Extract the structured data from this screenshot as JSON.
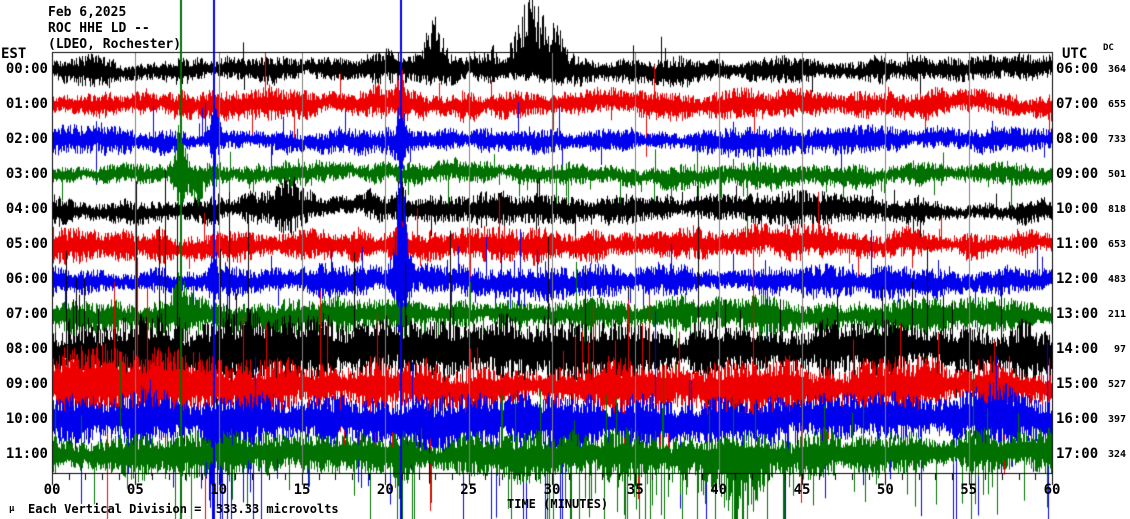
{
  "header": {
    "date": "Feb 6,2025",
    "station_line": "ROC HHE LD --",
    "network_line": "(LDEO, Rochester)"
  },
  "left_axis": {
    "tz": "EST"
  },
  "right_axis": {
    "tz": "UTC",
    "dc_label": "DC"
  },
  "x_axis": {
    "title": "TIME (MINUTES)"
  },
  "footer": {
    "mu_symbol": "μ",
    "scale_note": "Each Vertical Division =  333.33 microvolts"
  },
  "chart_data": {
    "type": "seismogram-helicorder",
    "title": "ROC HHE LD -- (LDEO, Rochester) Feb 6,2025",
    "station": "ROC HHE LD",
    "network": "LDEO, Rochester",
    "date": "Feb 6,2025",
    "xlabel": "TIME (MINUTES)",
    "x_range_minutes": [
      0,
      60
    ],
    "x_major_tick_min": 5,
    "x_minor_tick_min": 1,
    "x_tick_labels": [
      "00",
      "05",
      "10",
      "15",
      "20",
      "25",
      "30",
      "35",
      "40",
      "45",
      "50",
      "55",
      "60"
    ],
    "grid": true,
    "scale_note": "Each Vertical Division = 333.33 microvolts",
    "palette": {
      "black": "#000000",
      "red": "#ee0000",
      "blue": "#0000ee",
      "green": "#007000",
      "grid": "#808080"
    },
    "rows": [
      {
        "est": "00:00",
        "utc": "06:00",
        "dc": 364,
        "color": "black",
        "amp": 11,
        "spike": 0.015,
        "spike_scale": 3,
        "events": [
          {
            "m": 22.9,
            "w": 0.55,
            "a": 40,
            "dir": "up"
          },
          {
            "m": 28.8,
            "w": 1.1,
            "a": 62,
            "dir": "up"
          },
          {
            "m": 30.2,
            "w": 0.5,
            "a": 25,
            "dir": "up"
          },
          {
            "m": 26.3,
            "w": 0.4,
            "a": 16,
            "dir": "up"
          }
        ]
      },
      {
        "est": "01:00",
        "utc": "07:00",
        "dc": 655,
        "color": "red",
        "amp": 12,
        "spike": 0.02,
        "spike_scale": 3,
        "events": [
          {
            "m": 20.9,
            "w": 0.3,
            "a": 26,
            "dir": "both"
          },
          {
            "m": 14.5,
            "w": 2,
            "a": 6,
            "dir": "both"
          }
        ]
      },
      {
        "est": "02:00",
        "utc": "08:00",
        "dc": 733,
        "color": "blue",
        "amp": 11,
        "spike": 0.02,
        "spike_scale": 3,
        "events": [
          {
            "m": 9.7,
            "w": 0.3,
            "a": 28,
            "dir": "both"
          },
          {
            "m": 20.9,
            "w": 0.25,
            "a": 30,
            "dir": "both"
          }
        ]
      },
      {
        "est": "03:00",
        "utc": "09:00",
        "dc": 501,
        "color": "green",
        "amp": 10,
        "spike": 0.03,
        "spike_scale": 3.5,
        "bias": "down",
        "events": [
          {
            "m": 7.7,
            "w": 0.35,
            "a": 55,
            "dir": "both"
          },
          {
            "m": 8.6,
            "w": 0.5,
            "a": 30,
            "dir": "down"
          }
        ]
      },
      {
        "est": "04:00",
        "utc": "10:00",
        "dc": 818,
        "color": "black",
        "amp": 13,
        "spike": 0.02,
        "spike_scale": 3,
        "events": [
          {
            "m": 14.2,
            "w": 1.2,
            "a": 18,
            "dir": "both"
          },
          {
            "m": 20.9,
            "w": 0.3,
            "a": 18,
            "dir": "both"
          }
        ]
      },
      {
        "est": "05:00",
        "utc": "11:00",
        "dc": 653,
        "color": "red",
        "amp": 13,
        "spike": 0.025,
        "spike_scale": 3,
        "events": [
          {
            "m": 20.9,
            "w": 0.3,
            "a": 22,
            "dir": "both"
          },
          {
            "m": 28,
            "w": 3,
            "a": 8,
            "dir": "both"
          }
        ]
      },
      {
        "est": "06:00",
        "utc": "12:00",
        "dc": 483,
        "color": "blue",
        "amp": 12,
        "spike": 0.03,
        "spike_scale": 4,
        "events": [
          {
            "m": 20.9,
            "w": 0.4,
            "a": 90,
            "dir": "both"
          },
          {
            "m": 9.7,
            "w": 0.3,
            "a": 30,
            "dir": "both"
          },
          {
            "m": 26.5,
            "w": 2.2,
            "a": 35,
            "dir": "down",
            "mode": "spikes",
            "p": 0.2
          }
        ]
      },
      {
        "est": "07:00",
        "utc": "13:00",
        "dc": 211,
        "color": "green",
        "amp": 14,
        "spike": 0.05,
        "spike_scale": 4,
        "bias": "down",
        "events": [
          {
            "m": 7.7,
            "w": 0.4,
            "a": 40,
            "dir": "both"
          },
          {
            "m": 30,
            "w": 14,
            "a": 12,
            "dir": "down",
            "mode": "spikes",
            "p": 0.06
          }
        ]
      },
      {
        "est": "08:00",
        "utc": "14:00",
        "dc": 97,
        "color": "black",
        "amp": 22,
        "spike": 0.06,
        "spike_scale": 4.5,
        "events": [
          {
            "m": 8,
            "w": 8,
            "a": 14,
            "dir": "both"
          },
          {
            "m": 1.5,
            "w": 1,
            "a": 28,
            "dir": "both",
            "mode": "spikes",
            "p": 0.3
          }
        ]
      },
      {
        "est": "09:00",
        "utc": "15:00",
        "dc": 527,
        "color": "red",
        "amp": 22,
        "spike": 0.06,
        "spike_scale": 4.5,
        "events": [
          {
            "m": 7,
            "w": 7,
            "a": 14,
            "dir": "both"
          },
          {
            "m": 36,
            "w": 4,
            "a": 16,
            "dir": "both",
            "mode": "spikes",
            "p": 0.12
          }
        ]
      },
      {
        "est": "10:00",
        "utc": "16:00",
        "dc": 397,
        "color": "blue",
        "amp": 22,
        "spike": 0.06,
        "spike_scale": 5,
        "bias": "down",
        "events": [
          {
            "m": 9.7,
            "w": 0.5,
            "a": 90,
            "dir": "down"
          },
          {
            "m": 11.5,
            "w": 1.2,
            "a": 60,
            "dir": "down",
            "mode": "spikes",
            "p": 0.3
          },
          {
            "m": 20.3,
            "w": 1.5,
            "a": 70,
            "dir": "down",
            "mode": "spikes",
            "p": 0.3
          },
          {
            "m": 31,
            "w": 1,
            "a": 30,
            "dir": "down"
          }
        ]
      },
      {
        "est": "11:00",
        "utc": "17:00",
        "dc": 324,
        "color": "green",
        "amp": 18,
        "spike": 0.08,
        "spike_scale": 4.5,
        "bias": "down",
        "events": [
          {
            "m": 37,
            "w": 5,
            "a": 32,
            "dir": "down",
            "mode": "spikes",
            "p": 0.25
          },
          {
            "m": 41,
            "w": 1.5,
            "a": 45,
            "dir": "down"
          },
          {
            "m": 20.9,
            "w": 0.3,
            "a": 40,
            "dir": "down"
          }
        ]
      }
    ],
    "full_height_spikes": [
      {
        "minute": 7.68,
        "color": "green"
      },
      {
        "minute": 9.66,
        "color": "blue"
      },
      {
        "minute": 20.88,
        "color": "blue"
      }
    ]
  }
}
